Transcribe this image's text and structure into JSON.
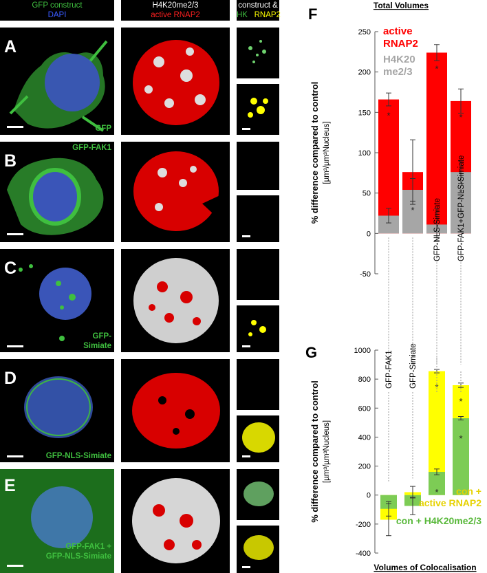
{
  "headers": {
    "col1_line1": "GFP construct",
    "col1_line2": "DAPI",
    "col2_line1": "H4K20me2/3",
    "col2_line2": "active RNAP2",
    "col3_line1": "construct &",
    "col3_hk": "HK",
    "col3_rnap2": "RNAP2"
  },
  "rows": [
    {
      "letter": "A",
      "construct": "GFP",
      "construct2": ""
    },
    {
      "letter": "B",
      "construct": "GFP-FAK1",
      "construct2": ""
    },
    {
      "letter": "C",
      "construct": "GFP-",
      "construct2": "Simiate"
    },
    {
      "letter": "D",
      "construct": "GFP-NLS-Simiate",
      "construct2": ""
    },
    {
      "letter": "E",
      "construct": "GFP-FAK1 +",
      "construct2": "GFP-NLS-Simiate"
    }
  ],
  "colors": {
    "gfp": "#3fbf3f",
    "dapi": "#2f4fd0",
    "red": "#ff0000",
    "grey": "#a6a6a6",
    "yellow": "#ffff00",
    "green": "#7dcc55"
  },
  "chart_data": [
    {
      "panel": "F",
      "title": "Total Volumes",
      "type": "bar",
      "ylabel": "% difference compared to control",
      "ylabel_unit": "[µm³/µm³Nucleus]",
      "ylim": [
        -50,
        250
      ],
      "yticks": [
        "250",
        "200",
        "150",
        "100",
        "50",
        "0",
        "-50"
      ],
      "categories": [
        "GFP-FAK1",
        "GFP-Simiate",
        "GFP-NLS-Simiate",
        "GFP-FAK1+GFP-NLS-Simiate"
      ],
      "category_labels": [
        "",
        "",
        "GFP-NLS-Simiate",
        "GFP-FAK1+GFP-NLS-Simiate"
      ],
      "series": [
        {
          "name": "active RNAP2",
          "values": [
            166,
            76,
            224,
            164
          ],
          "err": [
            8,
            40,
            10,
            15
          ],
          "sig": [
            true,
            false,
            true,
            true
          ]
        },
        {
          "name": "H4K20 me2/3",
          "values": [
            22,
            54,
            11,
            76
          ],
          "err": [
            9,
            14,
            20,
            14
          ],
          "sig": [
            false,
            true,
            false,
            true
          ]
        }
      ],
      "legend": {
        "active_line1": "active",
        "active_line2": "RNAP2",
        "h4_line1": "H4K20",
        "h4_line2": "me2/3"
      },
      "sig_mark": "*"
    },
    {
      "panel": "G",
      "title": "Volumes of Colocalisation",
      "type": "bar",
      "ylabel": "% difference compared to control",
      "ylabel_unit": "[µm³/µm³Nucleus]",
      "ylim": [
        -400,
        1000
      ],
      "yticks": [
        "1000",
        "800",
        "600",
        "400",
        "200",
        "0",
        "-200",
        "-400"
      ],
      "categories": [
        "GFP-FAK1",
        "GFP-Simiate",
        "GFP-NLS-Simiate",
        "GFP-FAK1+GFP-NLS-Simiate"
      ],
      "category_labels": [
        "GFP-FAK1",
        "GFP-Simiate",
        "",
        ""
      ],
      "series": [
        {
          "name": "con + active RNAP2",
          "values": [
            -170,
            20,
            855,
            758
          ],
          "err": [
            110,
            40,
            12,
            15
          ],
          "sig": [
            false,
            false,
            true,
            true
          ]
        },
        {
          "name": "con + H4K20me2/3",
          "values": [
            -95,
            -75,
            160,
            530
          ],
          "err": [
            50,
            60,
            20,
            12
          ],
          "sig": [
            false,
            false,
            true,
            true
          ]
        }
      ],
      "legend": {
        "active_line1": "con +",
        "active_line2": "active RNAP2",
        "h4_line1": "con + H4K20me2/3"
      },
      "sig_mark": "*"
    }
  ]
}
